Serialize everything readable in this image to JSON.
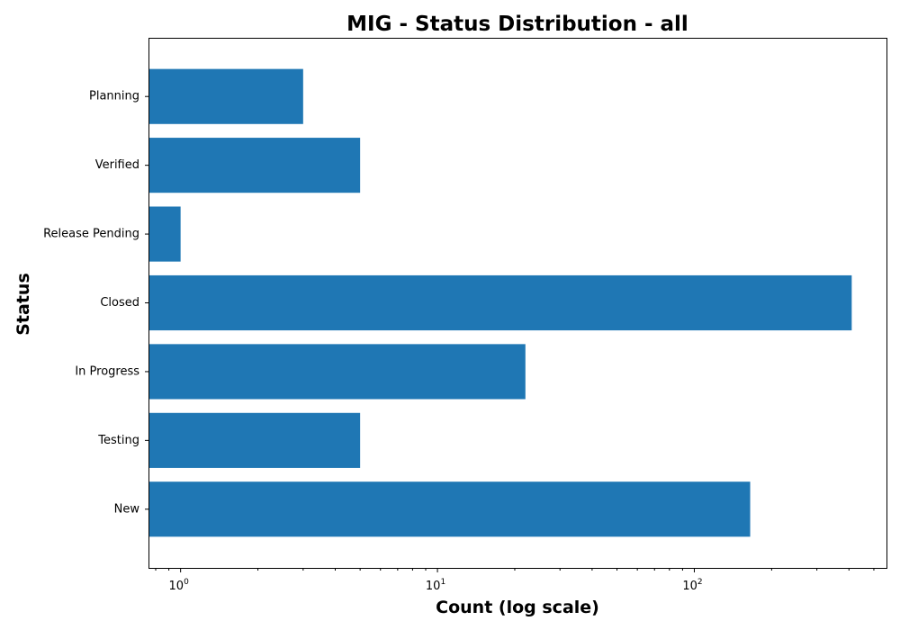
{
  "chart_data": {
    "type": "bar",
    "orientation": "horizontal",
    "title": "MIG - Status Distribution - all",
    "xlabel": "Count (log scale)",
    "ylabel": "Status",
    "x_scale": "log",
    "xlim": [
      0.75,
      560
    ],
    "grid": false,
    "legend": "none",
    "bar_color": "#1f77b4",
    "categories": [
      "New",
      "Testing",
      "In Progress",
      "Closed",
      "Release Pending",
      "Verified",
      "Planning"
    ],
    "values": [
      165,
      5,
      22,
      410,
      1,
      5,
      3
    ],
    "x_ticks": [
      {
        "value": 1,
        "base": "10",
        "exp": "0"
      },
      {
        "value": 10,
        "base": "10",
        "exp": "1"
      },
      {
        "value": 100,
        "base": "10",
        "exp": "2"
      }
    ]
  }
}
